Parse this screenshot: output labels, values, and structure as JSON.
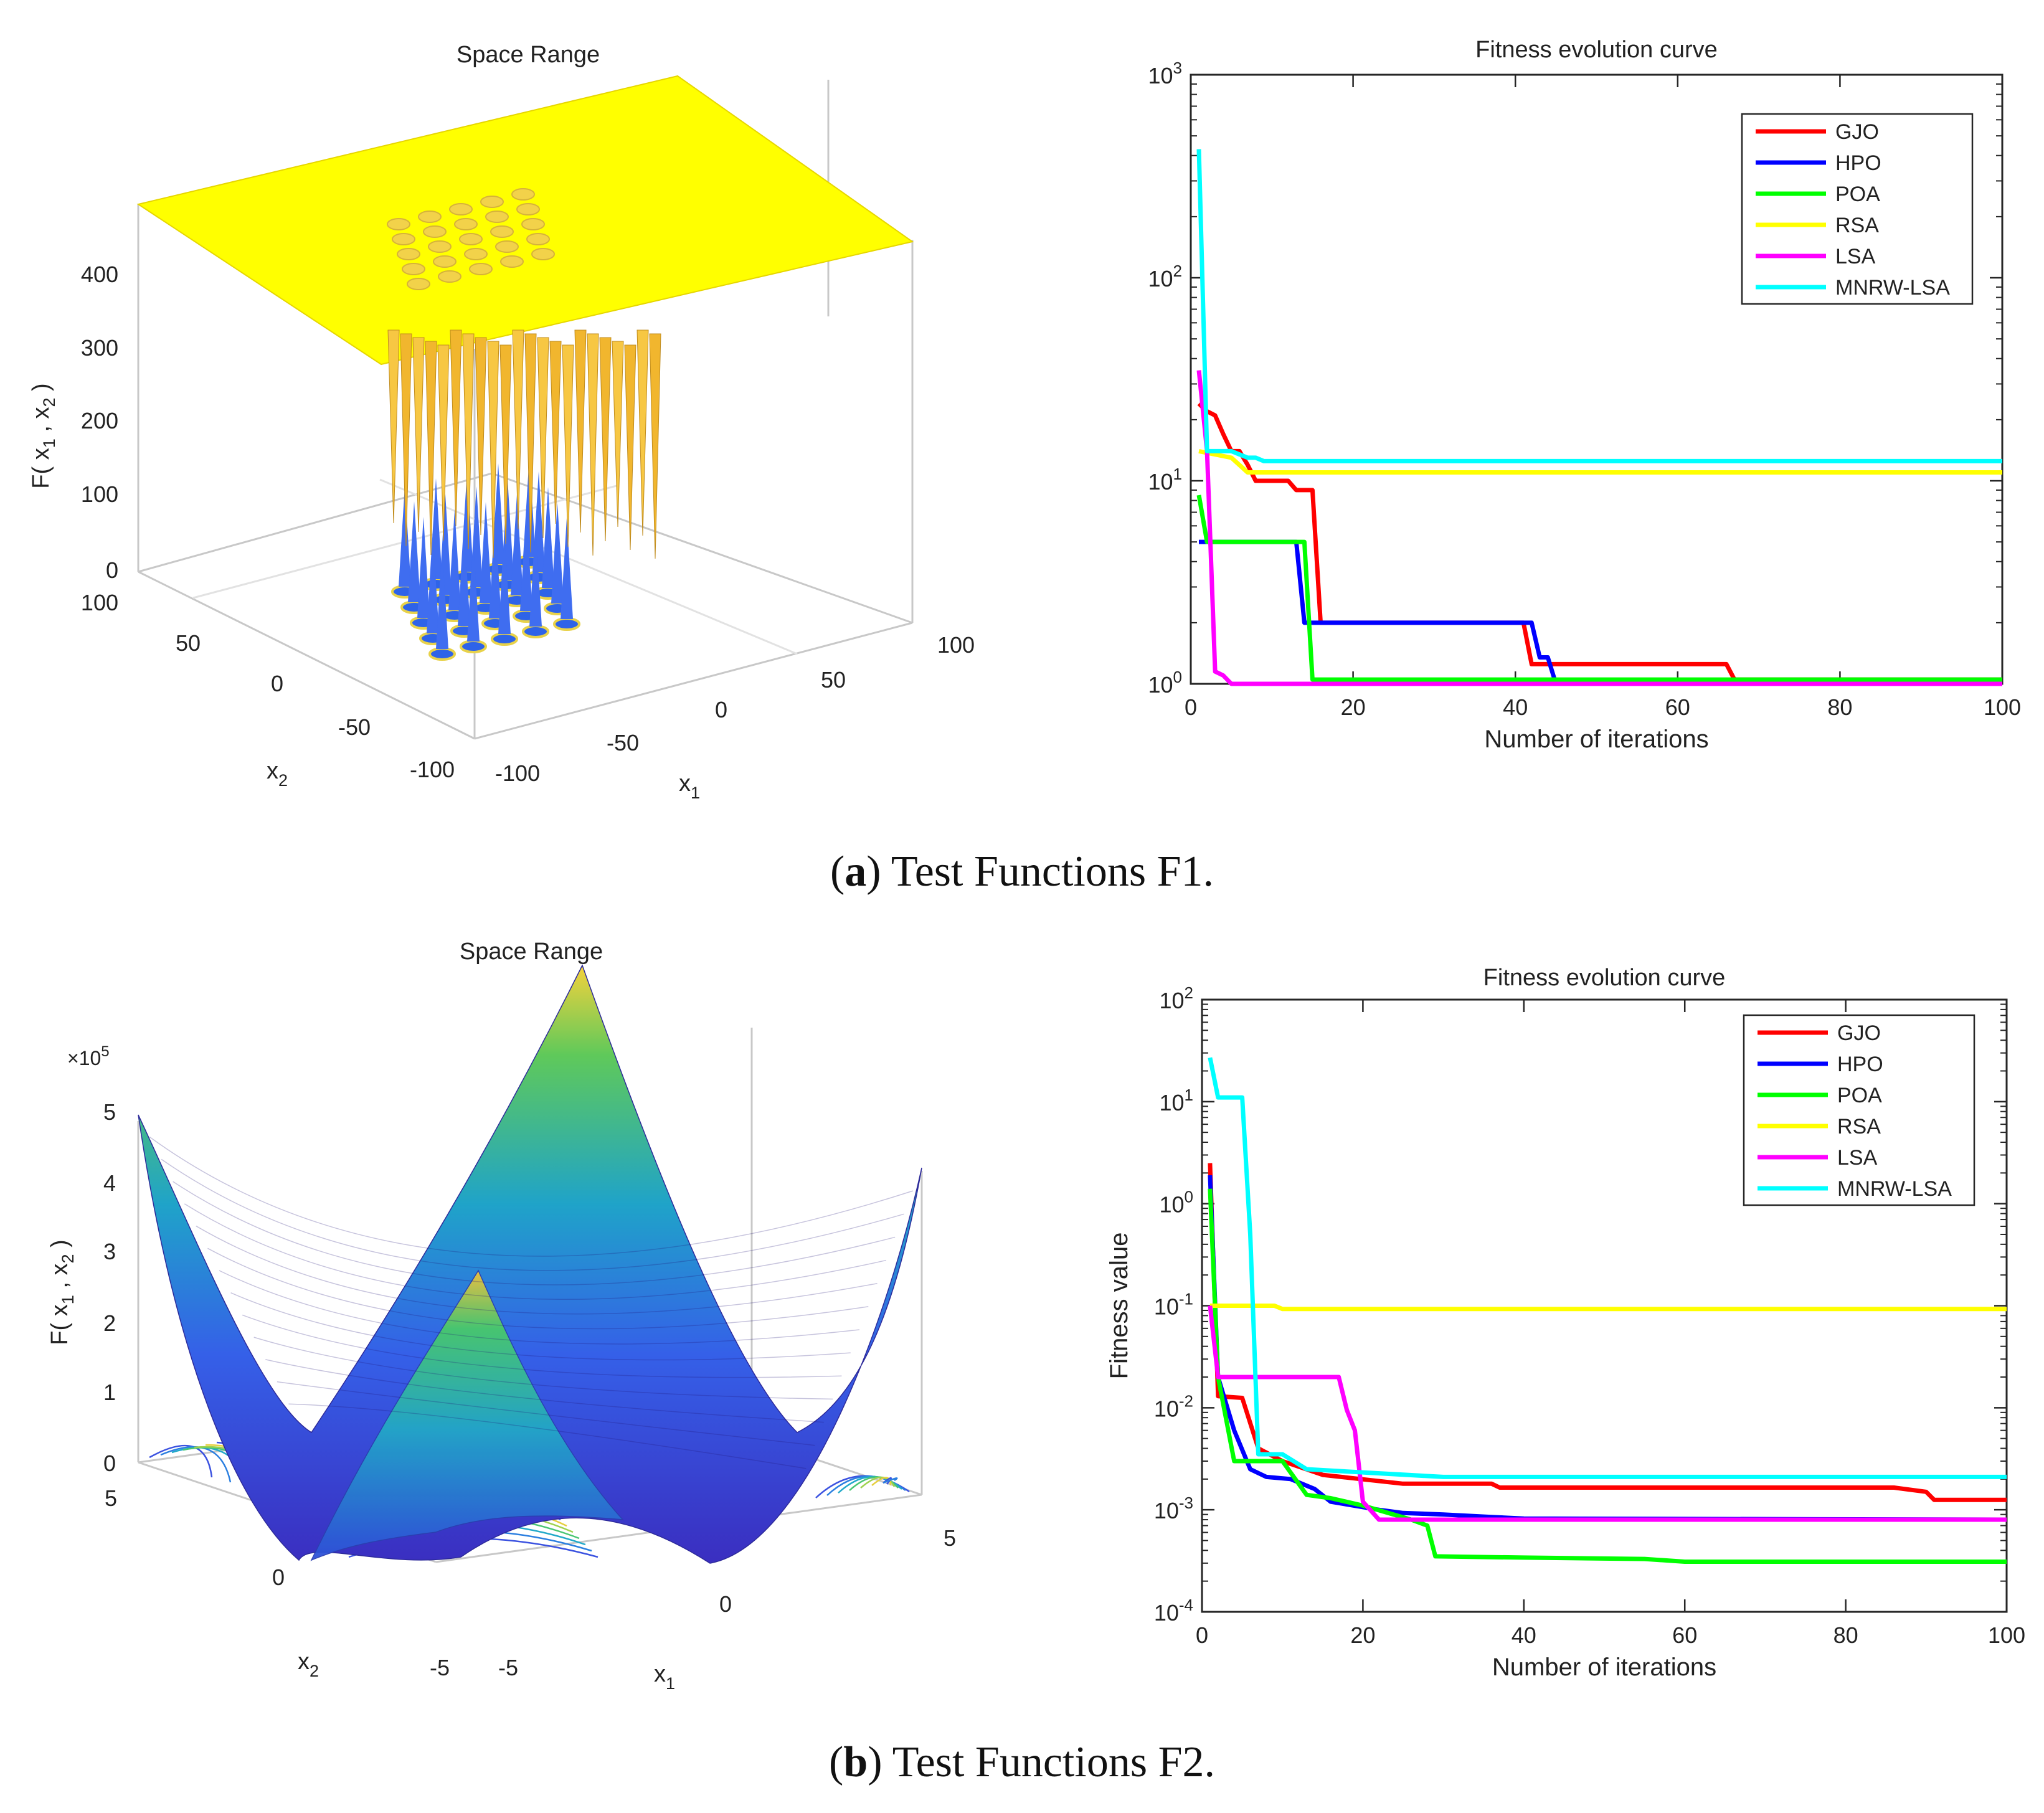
{
  "panels": [
    {
      "id": "a",
      "caption_letter": "a",
      "caption_text": "Test Functions F1.",
      "surface": {
        "title": "Space Range",
        "zlabel": "F( x1 , x2 )",
        "xlabel": "x1",
        "ylabel": "x2",
        "zticks": [
          "0",
          "100",
          "200",
          "300",
          "400"
        ],
        "xticks": [
          "-100",
          "-50",
          "0",
          "50",
          "100"
        ],
        "yticks": [
          "-100",
          "-50",
          "0",
          "50",
          "100"
        ],
        "x_range": [
          -100,
          100
        ],
        "y_range": [
          -100,
          100
        ],
        "z_range": [
          0,
          500
        ],
        "description_colors": {
          "plateau": "#ffff00",
          "spikes": "#f5b92a",
          "wells": "#3f6df0"
        }
      }
    },
    {
      "id": "b",
      "caption_letter": "b",
      "caption_text": "Test Functions F2.",
      "surface": {
        "title": "Space Range",
        "zlabel": "F( x1 , x2 )",
        "xlabel": "x1",
        "ylabel": "x2",
        "exponent": "×10",
        "exponent_power": "5",
        "zticks": [
          "0",
          "1",
          "2",
          "3",
          "4",
          "5"
        ],
        "xticks": [
          "-5",
          "0",
          "5"
        ],
        "yticks": [
          "-5",
          "0",
          "5"
        ],
        "x_range": [
          -5,
          5
        ],
        "y_range": [
          -5,
          5
        ],
        "z_range": [
          0,
          5
        ]
      }
    }
  ],
  "chart_data": [
    {
      "type": "line",
      "panel": "a",
      "title": "Fitness evolution curve",
      "xlabel": "Number of iterations",
      "ylabel": "",
      "yscale": "log",
      "xlim": [
        0,
        100
      ],
      "ylim": [
        1,
        1000
      ],
      "xticks": [
        "0",
        "20",
        "40",
        "60",
        "80",
        "100"
      ],
      "yticks": [
        {
          "base": "10",
          "exp": "0"
        },
        {
          "base": "10",
          "exp": "1"
        },
        {
          "base": "10",
          "exp": "2"
        },
        {
          "base": "10",
          "exp": "3"
        }
      ],
      "legend_position": "top-right",
      "series": [
        {
          "name": "GJO",
          "color": "#ff0000",
          "points": [
            [
              1,
              24
            ],
            [
              2,
              22
            ],
            [
              3,
              21
            ],
            [
              4,
              17
            ],
            [
              5,
              14
            ],
            [
              6,
              14
            ],
            [
              7,
              12
            ],
            [
              8,
              10
            ],
            [
              12,
              10
            ],
            [
              13,
              9
            ],
            [
              15,
              9
            ],
            [
              16,
              2
            ],
            [
              41,
              2
            ],
            [
              42,
              1.25
            ],
            [
              66,
              1.25
            ],
            [
              67,
              1.05
            ],
            [
              100,
              1.05
            ]
          ]
        },
        {
          "name": "HPO",
          "color": "#0000ff",
          "points": [
            [
              1,
              5
            ],
            [
              13,
              5
            ],
            [
              14,
              2
            ],
            [
              42,
              2
            ],
            [
              43,
              1.35
            ],
            [
              44,
              1.35
            ],
            [
              45,
              1
            ]
          ]
        },
        {
          "name": "POA",
          "color": "#00ff00",
          "points": [
            [
              1,
              8.5
            ],
            [
              2,
              5
            ],
            [
              14,
              5
            ],
            [
              15,
              1.05
            ],
            [
              100,
              1.05
            ]
          ]
        },
        {
          "name": "RSA",
          "color": "#ffff00",
          "points": [
            [
              1,
              14
            ],
            [
              5,
              13
            ],
            [
              7,
              11
            ],
            [
              100,
              11
            ]
          ]
        },
        {
          "name": "LSA",
          "color": "#ff00ff",
          "points": [
            [
              1,
              35
            ],
            [
              2,
              14
            ],
            [
              3,
              1.15
            ],
            [
              4,
              1.1
            ],
            [
              5,
              1
            ],
            [
              100,
              1
            ]
          ]
        },
        {
          "name": "MNRW-LSA",
          "color": "#00ffff",
          "points": [
            [
              1,
              430
            ],
            [
              2,
              14
            ],
            [
              5,
              14
            ],
            [
              7,
              13
            ],
            [
              8,
              13
            ],
            [
              9,
              12.5
            ],
            [
              100,
              12.5
            ]
          ]
        }
      ]
    },
    {
      "type": "line",
      "panel": "b",
      "title": "Fitness evolution curve",
      "xlabel": "Number of iterations",
      "ylabel": "Fitness value",
      "yscale": "log",
      "xlim": [
        0,
        100
      ],
      "ylim": [
        0.0001,
        100
      ],
      "xticks": [
        "0",
        "20",
        "40",
        "60",
        "80",
        "100"
      ],
      "yticks": [
        {
          "base": "10",
          "exp": "-4"
        },
        {
          "base": "10",
          "exp": "-3"
        },
        {
          "base": "10",
          "exp": "-2"
        },
        {
          "base": "10",
          "exp": "-1"
        },
        {
          "base": "10",
          "exp": "0"
        },
        {
          "base": "10",
          "exp": "1"
        },
        {
          "base": "10",
          "exp": "2"
        }
      ],
      "legend_position": "top-right",
      "series": [
        {
          "name": "GJO",
          "color": "#ff0000",
          "points": [
            [
              1,
              2.5
            ],
            [
              2,
              0.013
            ],
            [
              5,
              0.0125
            ],
            [
              7,
              0.004
            ],
            [
              10,
              0.003
            ],
            [
              15,
              0.0022
            ],
            [
              25,
              0.0018
            ],
            [
              36,
              0.0018
            ],
            [
              37,
              0.00165
            ],
            [
              86,
              0.00165
            ],
            [
              90,
              0.0015
            ],
            [
              91,
              0.00125
            ],
            [
              100,
              0.00125
            ]
          ]
        },
        {
          "name": "HPO",
          "color": "#0000ff",
          "points": [
            [
              1,
              1.9
            ],
            [
              2,
              0.02
            ],
            [
              4,
              0.006
            ],
            [
              6,
              0.0025
            ],
            [
              8,
              0.0021
            ],
            [
              11,
              0.002
            ],
            [
              14,
              0.0016
            ],
            [
              16,
              0.0012
            ],
            [
              22,
              0.001
            ],
            [
              25,
              0.00093
            ],
            [
              30,
              0.0009
            ],
            [
              36,
              0.00085
            ],
            [
              40,
              0.00082
            ],
            [
              100,
              0.0008
            ]
          ]
        },
        {
          "name": "POA",
          "color": "#00ff00",
          "points": [
            [
              1,
              1.4
            ],
            [
              2,
              0.02
            ],
            [
              4,
              0.003
            ],
            [
              10,
              0.003
            ],
            [
              13,
              0.0014
            ],
            [
              16,
              0.0013
            ],
            [
              20,
              0.0011
            ],
            [
              26,
              0.0008
            ],
            [
              28,
              0.0007
            ],
            [
              29,
              0.00035
            ],
            [
              40,
              0.00034
            ],
            [
              55,
              0.00033
            ],
            [
              60,
              0.00031
            ],
            [
              100,
              0.00031
            ]
          ]
        },
        {
          "name": "RSA",
          "color": "#ffff00",
          "points": [
            [
              1,
              0.1
            ],
            [
              9,
              0.1
            ],
            [
              10,
              0.093
            ],
            [
              100,
              0.093
            ]
          ]
        },
        {
          "name": "LSA",
          "color": "#ff00ff",
          "points": [
            [
              1,
              0.1
            ],
            [
              2,
              0.02
            ],
            [
              17,
              0.02
            ],
            [
              18,
              0.0095
            ],
            [
              19,
              0.006
            ],
            [
              20,
              0.0012
            ],
            [
              22,
              0.0008
            ],
            [
              100,
              0.0008
            ]
          ]
        },
        {
          "name": "MNRW-LSA",
          "color": "#00ffff",
          "points": [
            [
              1,
              27
            ],
            [
              2,
              11
            ],
            [
              5,
              11
            ],
            [
              6,
              0.5
            ],
            [
              7,
              0.0035
            ],
            [
              10,
              0.0035
            ],
            [
              13,
              0.0025
            ],
            [
              21,
              0.0023
            ],
            [
              30,
              0.0021
            ],
            [
              100,
              0.0021
            ]
          ]
        }
      ]
    }
  ]
}
